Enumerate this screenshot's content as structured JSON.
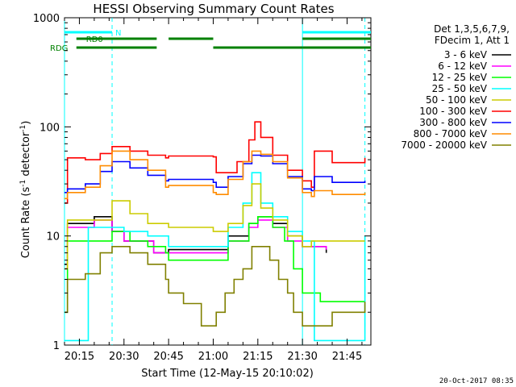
{
  "chart_data": {
    "type": "line",
    "title": "HESSI Observing Summary Count Rates",
    "xlabel": "Start Time (12-May-15 20:10:02)",
    "ylabel": "Count Rate (s",
    "ylabel_sup1": "-1",
    "ylabel_mid": " detector",
    "ylabel_sup2": "-1",
    "ylabel_end": ")",
    "x_tick_labels": [
      "20:15",
      "20:30",
      "20:45",
      "21:00",
      "21:15",
      "21:30",
      "21:45"
    ],
    "x_tick_minutes": [
      5,
      20,
      35,
      50,
      65,
      80,
      95
    ],
    "xlim_minutes": [
      0,
      103
    ],
    "y_scale": "log",
    "ylim": [
      1,
      1000
    ],
    "y_tick_labels": [
      "1",
      "10",
      "100",
      "1000"
    ],
    "y_tick_values": [
      1,
      10,
      100,
      1000
    ],
    "legend_header": [
      "Det 1,3,5,6,7,9,",
      "FDecim 1, Att 1"
    ],
    "legend_position": "right",
    "footer_date": "20-Oct-2017 08:35",
    "series": [
      {
        "name": "3 - 6 keV",
        "color": "#000000",
        "points": [
          [
            0,
            5.5
          ],
          [
            1,
            13
          ],
          [
            10,
            15
          ],
          [
            16,
            11
          ],
          [
            20,
            9
          ],
          [
            30,
            7
          ],
          [
            35,
            7.5
          ],
          [
            50,
            7.5
          ],
          [
            55,
            10
          ],
          [
            62,
            13
          ],
          [
            65,
            15
          ],
          [
            70,
            13
          ],
          [
            75,
            10
          ],
          [
            80,
            8
          ],
          [
            88,
            7
          ]
        ]
      },
      {
        "name": "6 - 12 keV",
        "color": "#ff00ff",
        "points": [
          [
            0,
            5
          ],
          [
            1,
            12
          ],
          [
            10,
            14
          ],
          [
            16,
            11
          ],
          [
            20,
            9
          ],
          [
            30,
            7
          ],
          [
            35,
            7
          ],
          [
            50,
            7
          ],
          [
            55,
            9
          ],
          [
            62,
            12
          ],
          [
            65,
            14
          ],
          [
            70,
            12
          ],
          [
            75,
            9
          ],
          [
            80,
            8
          ],
          [
            88,
            7.5
          ]
        ]
      },
      {
        "name": "12 - 25 keV",
        "color": "#00ff00",
        "points": [
          [
            0,
            2
          ],
          [
            1,
            9
          ],
          [
            16,
            11
          ],
          [
            22,
            9
          ],
          [
            28,
            8
          ],
          [
            34,
            7
          ],
          [
            35,
            6
          ],
          [
            50,
            6
          ],
          [
            55,
            9
          ],
          [
            62,
            13
          ],
          [
            65,
            15
          ],
          [
            70,
            12
          ],
          [
            74,
            9
          ],
          [
            77,
            5
          ],
          [
            80,
            3
          ],
          [
            86,
            2.5
          ],
          [
            101,
            2.5
          ]
        ]
      },
      {
        "name": "25 - 50 keV",
        "color": "#00ffff",
        "points": [
          [
            0,
            1.1
          ],
          [
            7,
            1.1
          ],
          [
            8,
            12
          ],
          [
            16,
            12
          ],
          [
            20,
            11
          ],
          [
            28,
            10
          ],
          [
            35,
            8
          ],
          [
            50,
            8
          ],
          [
            55,
            12
          ],
          [
            60,
            20
          ],
          [
            63,
            38
          ],
          [
            66,
            20
          ],
          [
            70,
            15
          ],
          [
            75,
            11
          ],
          [
            80,
            9
          ],
          [
            83,
            9
          ],
          [
            84,
            1.1
          ],
          [
            98,
            1.1
          ],
          [
            101,
            10
          ]
        ]
      },
      {
        "name": "50 - 100 keV",
        "color": "#cccc00",
        "points": [
          [
            0,
            5
          ],
          [
            1,
            14
          ],
          [
            16,
            21
          ],
          [
            22,
            16
          ],
          [
            28,
            13
          ],
          [
            34,
            13
          ],
          [
            35,
            12
          ],
          [
            50,
            11
          ],
          [
            55,
            13
          ],
          [
            60,
            19
          ],
          [
            63,
            30
          ],
          [
            66,
            18
          ],
          [
            70,
            14
          ],
          [
            75,
            10
          ],
          [
            80,
            8
          ],
          [
            83,
            9
          ],
          [
            101,
            9
          ]
        ]
      },
      {
        "name": "100 - 300 keV",
        "color": "#ff0000",
        "points": [
          [
            0,
            20
          ],
          [
            1,
            52
          ],
          [
            7,
            50
          ],
          [
            12,
            57
          ],
          [
            16,
            66
          ],
          [
            22,
            60
          ],
          [
            28,
            55
          ],
          [
            34,
            52
          ],
          [
            35,
            54
          ],
          [
            50,
            53
          ],
          [
            51,
            38
          ],
          [
            58,
            48
          ],
          [
            62,
            76
          ],
          [
            64,
            111
          ],
          [
            66,
            80
          ],
          [
            70,
            55
          ],
          [
            75,
            40
          ],
          [
            80,
            32
          ],
          [
            83,
            28
          ],
          [
            84,
            60
          ],
          [
            90,
            47
          ],
          [
            101,
            52
          ]
        ]
      },
      {
        "name": "300 - 800 keV",
        "color": "#0000ff",
        "points": [
          [
            0,
            25
          ],
          [
            1,
            27
          ],
          [
            7,
            30
          ],
          [
            12,
            39
          ],
          [
            16,
            48
          ],
          [
            22,
            42
          ],
          [
            28,
            36
          ],
          [
            34,
            32
          ],
          [
            35,
            33
          ],
          [
            50,
            31
          ],
          [
            51,
            28
          ],
          [
            55,
            35
          ],
          [
            60,
            46
          ],
          [
            63,
            55
          ],
          [
            66,
            54
          ],
          [
            70,
            46
          ],
          [
            75,
            35
          ],
          [
            80,
            27
          ],
          [
            83,
            26
          ],
          [
            84,
            35
          ],
          [
            90,
            31
          ],
          [
            101,
            32
          ]
        ]
      },
      {
        "name": "800 - 7000 keV",
        "color": "#ff8c00",
        "points": [
          [
            0,
            22
          ],
          [
            1,
            25
          ],
          [
            7,
            28
          ],
          [
            12,
            44
          ],
          [
            16,
            60
          ],
          [
            22,
            50
          ],
          [
            28,
            40
          ],
          [
            34,
            28
          ],
          [
            35,
            29
          ],
          [
            50,
            25
          ],
          [
            51,
            24
          ],
          [
            55,
            33
          ],
          [
            60,
            48
          ],
          [
            63,
            60
          ],
          [
            66,
            56
          ],
          [
            70,
            48
          ],
          [
            75,
            34
          ],
          [
            80,
            25
          ],
          [
            83,
            23
          ],
          [
            84,
            26
          ],
          [
            90,
            24
          ],
          [
            101,
            25
          ]
        ]
      },
      {
        "name": "7000 - 20000 keV",
        "color": "#808000",
        "points": [
          [
            0,
            2
          ],
          [
            1,
            4
          ],
          [
            7,
            4.5
          ],
          [
            12,
            7
          ],
          [
            16,
            8
          ],
          [
            22,
            7
          ],
          [
            28,
            5.5
          ],
          [
            34,
            4
          ],
          [
            35,
            3
          ],
          [
            40,
            2.4
          ],
          [
            46,
            1.5
          ],
          [
            50,
            1.5
          ],
          [
            51,
            2
          ],
          [
            54,
            3
          ],
          [
            57,
            4
          ],
          [
            60,
            5
          ],
          [
            63,
            8
          ],
          [
            66,
            8
          ],
          [
            69,
            6
          ],
          [
            72,
            4
          ],
          [
            75,
            3
          ],
          [
            77,
            2
          ],
          [
            80,
            1.5
          ],
          [
            84,
            1.5
          ],
          [
            90,
            2
          ],
          [
            101,
            2.5
          ]
        ]
      }
    ],
    "flag_tracks": [
      {
        "label": "N",
        "color": "#00ffff",
        "segments": [
          [
            0,
            16
          ],
          [
            80,
            103
          ]
        ]
      },
      {
        "label": "RD0",
        "color": "#008000",
        "segments": [
          [
            4,
            31
          ],
          [
            35,
            50
          ],
          [
            80,
            103
          ]
        ]
      },
      {
        "label": "RDG",
        "color": "#008000",
        "segments": [
          [
            4,
            31
          ],
          [
            50,
            80
          ],
          [
            80,
            103
          ]
        ]
      }
    ],
    "event_lines": [
      {
        "minute": 0,
        "color": "#00ffff",
        "style": "solid"
      },
      {
        "minute": 16,
        "color": "#00ffff",
        "style": "dashed"
      },
      {
        "minute": 80,
        "color": "#00ffff",
        "style": "solid"
      },
      {
        "minute": 101,
        "color": "#00ffff",
        "style": "dashed"
      }
    ]
  }
}
